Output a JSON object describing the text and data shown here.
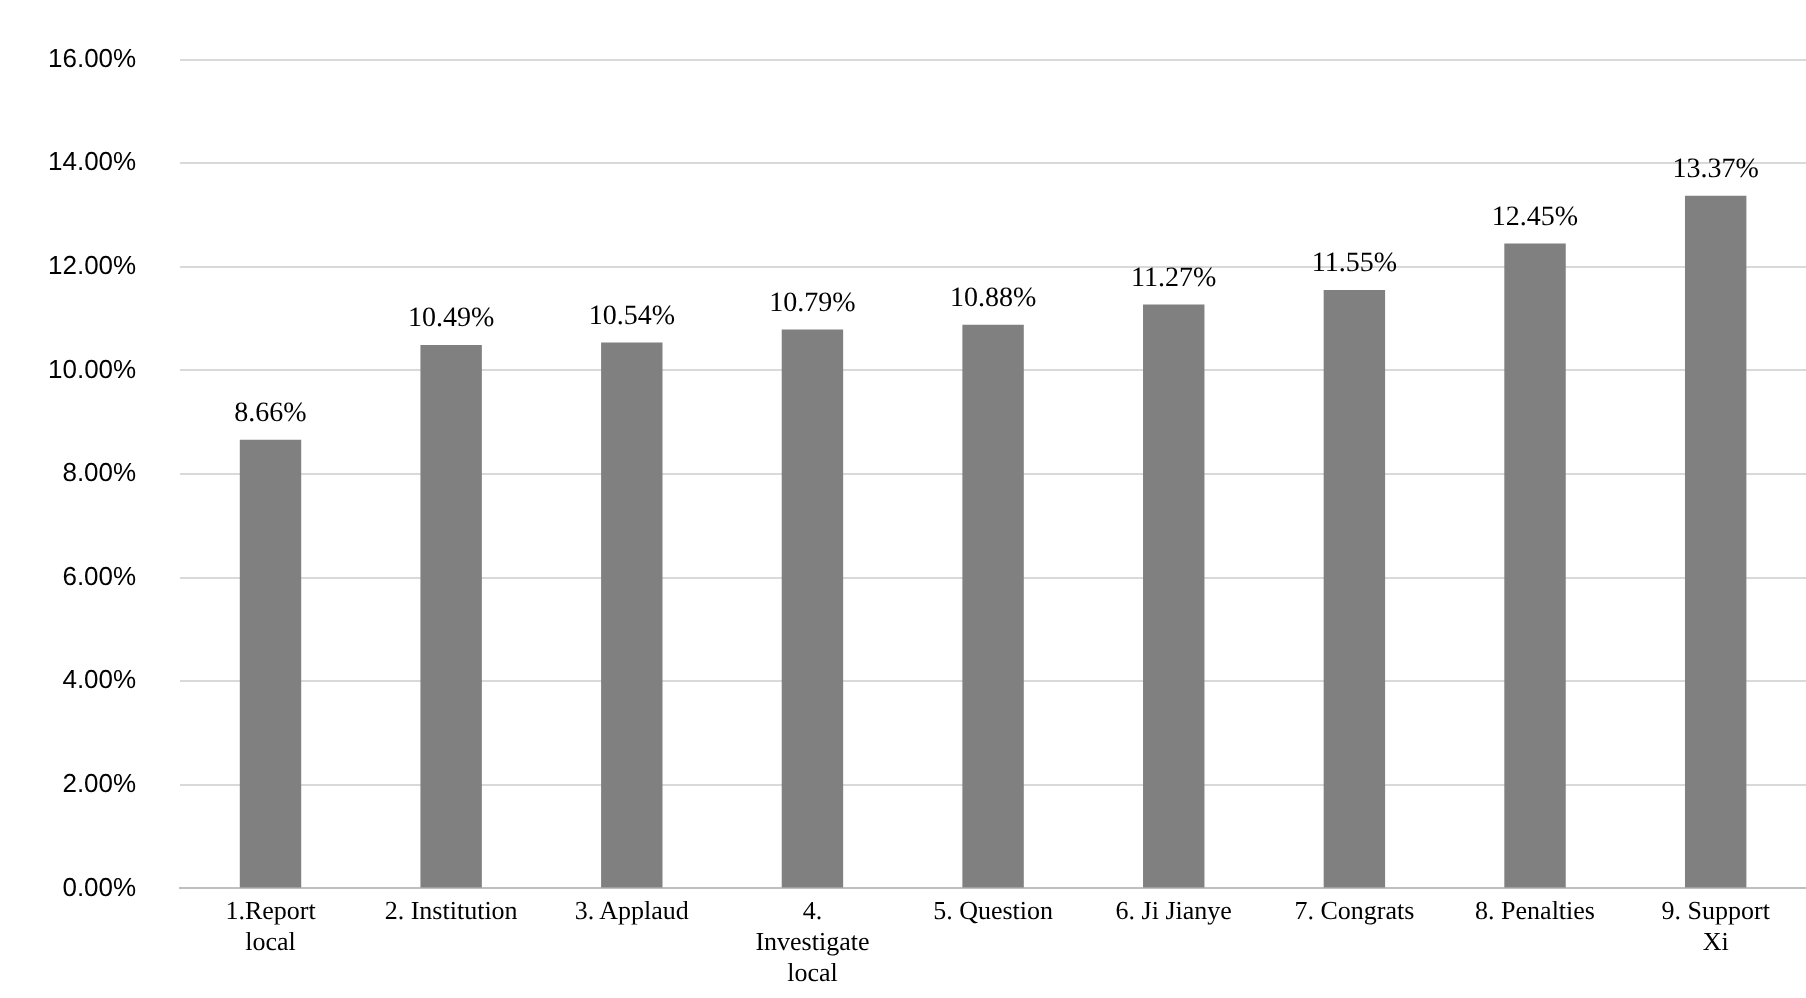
{
  "chart_data": {
    "type": "bar",
    "categories": [
      "1.Report\nlocal",
      "2. Institution",
      "3. Applaud",
      "4.\nInvestigate\nlocal",
      "5. Question",
      "6. Ji Jianye",
      "7. Congrats",
      "8. Penalties",
      "9. Support\nXi"
    ],
    "values": [
      8.66,
      10.49,
      10.54,
      10.79,
      10.88,
      11.27,
      11.55,
      12.45,
      13.37
    ],
    "value_labels": [
      "8.66%",
      "10.49%",
      "10.54%",
      "10.79%",
      "10.88%",
      "11.27%",
      "11.55%",
      "12.45%",
      "13.37%"
    ],
    "color": "#808080",
    "ylim": [
      0,
      16
    ],
    "yticks": [
      {
        "value": 0,
        "label": "0.00%"
      },
      {
        "value": 2,
        "label": "2.00%"
      },
      {
        "value": 4,
        "label": "4.00%"
      },
      {
        "value": 6,
        "label": "6.00%"
      },
      {
        "value": 8,
        "label": "8.00%"
      },
      {
        "value": 10,
        "label": "10.00%"
      },
      {
        "value": 12,
        "label": "12.00%"
      },
      {
        "value": 14,
        "label": "14.00%"
      },
      {
        "value": 16,
        "label": "16.00%"
      }
    ],
    "grid": "y",
    "legend": false
  }
}
